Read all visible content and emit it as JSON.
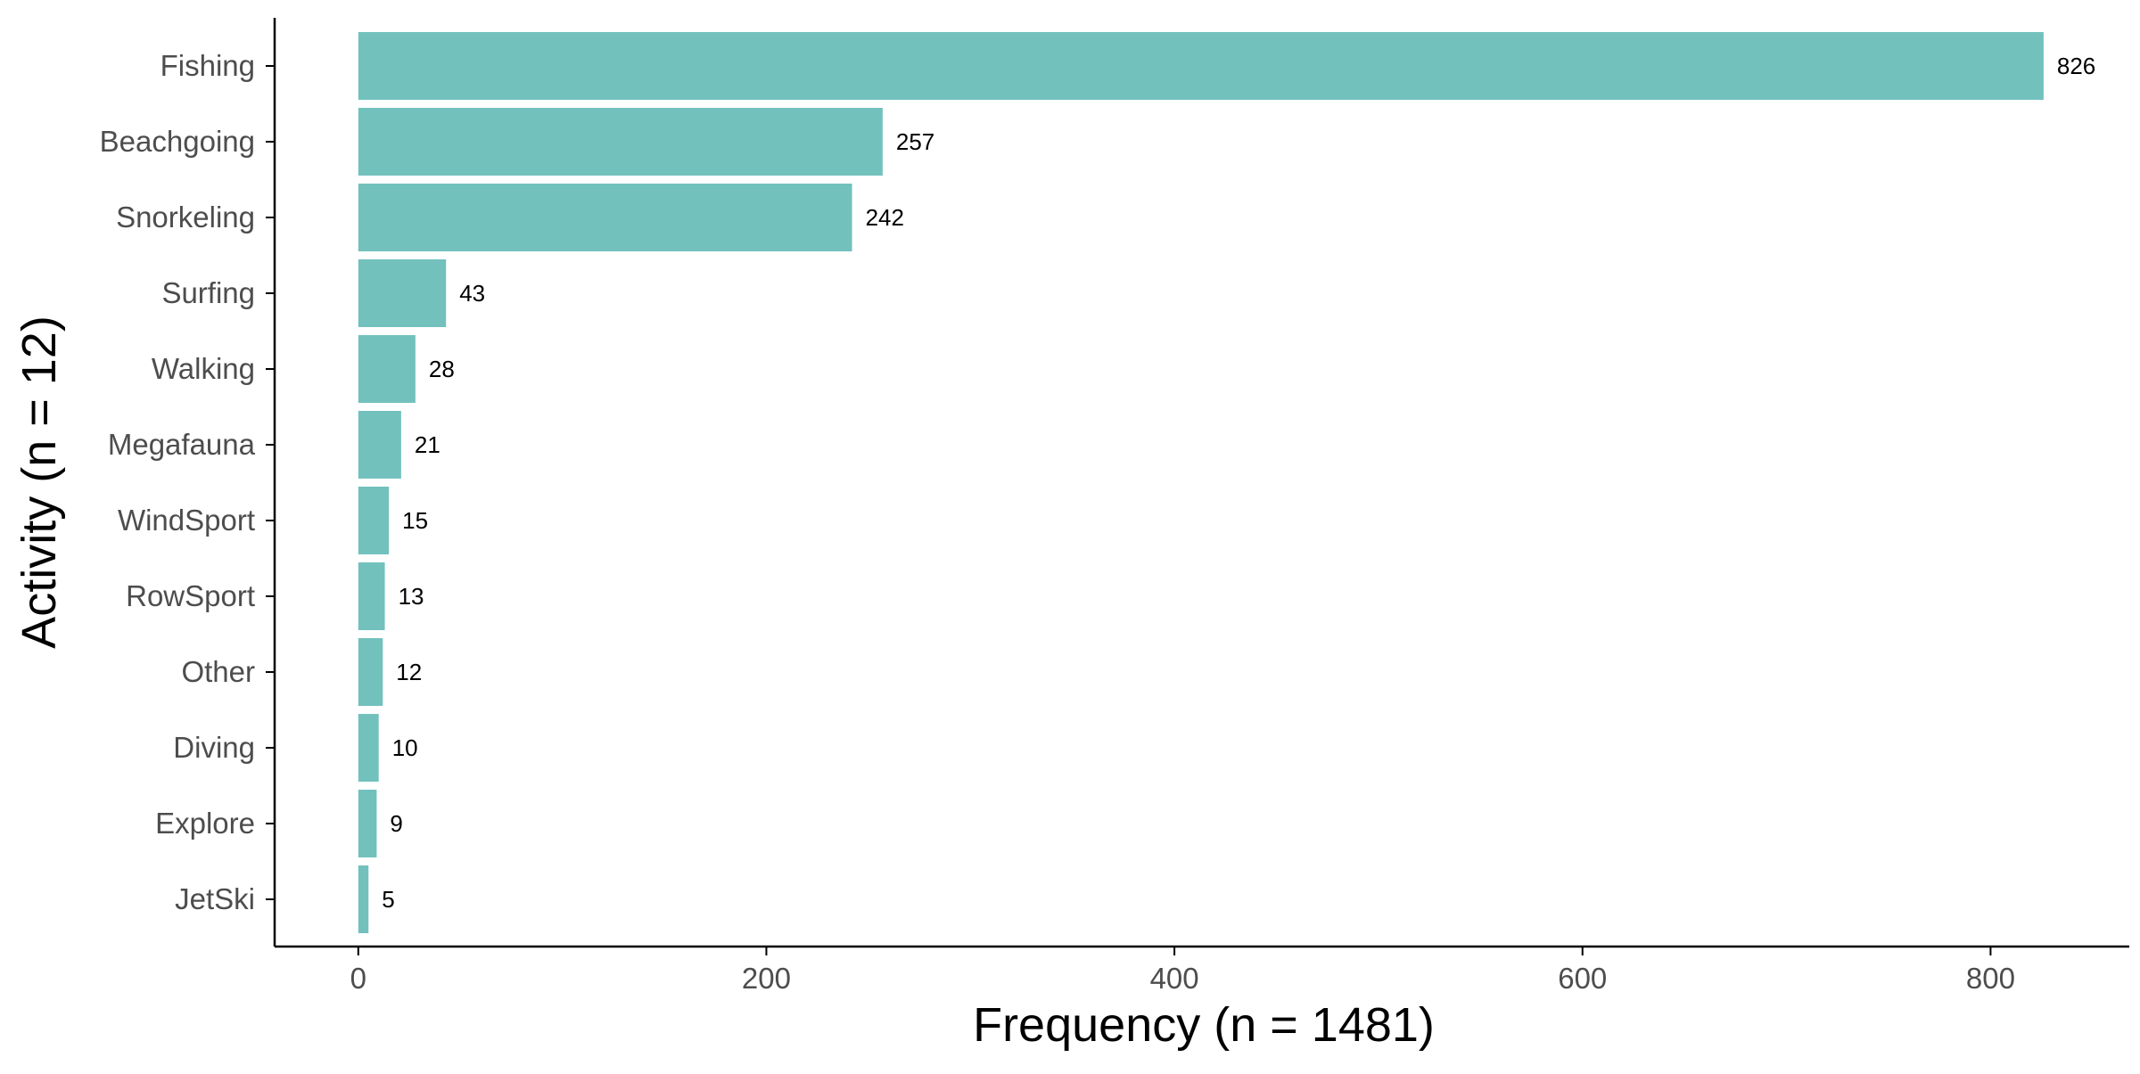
{
  "colors": {
    "bar": "#72c1bd",
    "axis": "#000000",
    "tick_text": "#4d4d4d",
    "label_text": "#000000",
    "background": "#ffffff"
  },
  "chart_data": {
    "type": "bar",
    "orientation": "horizontal",
    "categories": [
      "Fishing",
      "Beachgoing",
      "Snorkeling",
      "Surfing",
      "Walking",
      "Megafauna",
      "WindSport",
      "RowSport",
      "Other",
      "Diving",
      "Explore",
      "JetSki"
    ],
    "values": [
      826,
      257,
      242,
      43,
      28,
      21,
      15,
      13,
      12,
      10,
      9,
      5
    ],
    "data_labels": [
      "826",
      "257",
      "242",
      "43",
      "28",
      "21",
      "15",
      "13",
      "12",
      "10",
      "9",
      "5"
    ],
    "xlabel": "Frequency (n = 1481)",
    "ylabel": "Activity (n = 12)",
    "xlim": [
      -41,
      868
    ],
    "xticks": [
      0,
      200,
      400,
      600,
      800
    ],
    "xtick_labels": [
      "0",
      "200",
      "400",
      "600",
      "800"
    ],
    "grid": false,
    "legend": "none"
  }
}
